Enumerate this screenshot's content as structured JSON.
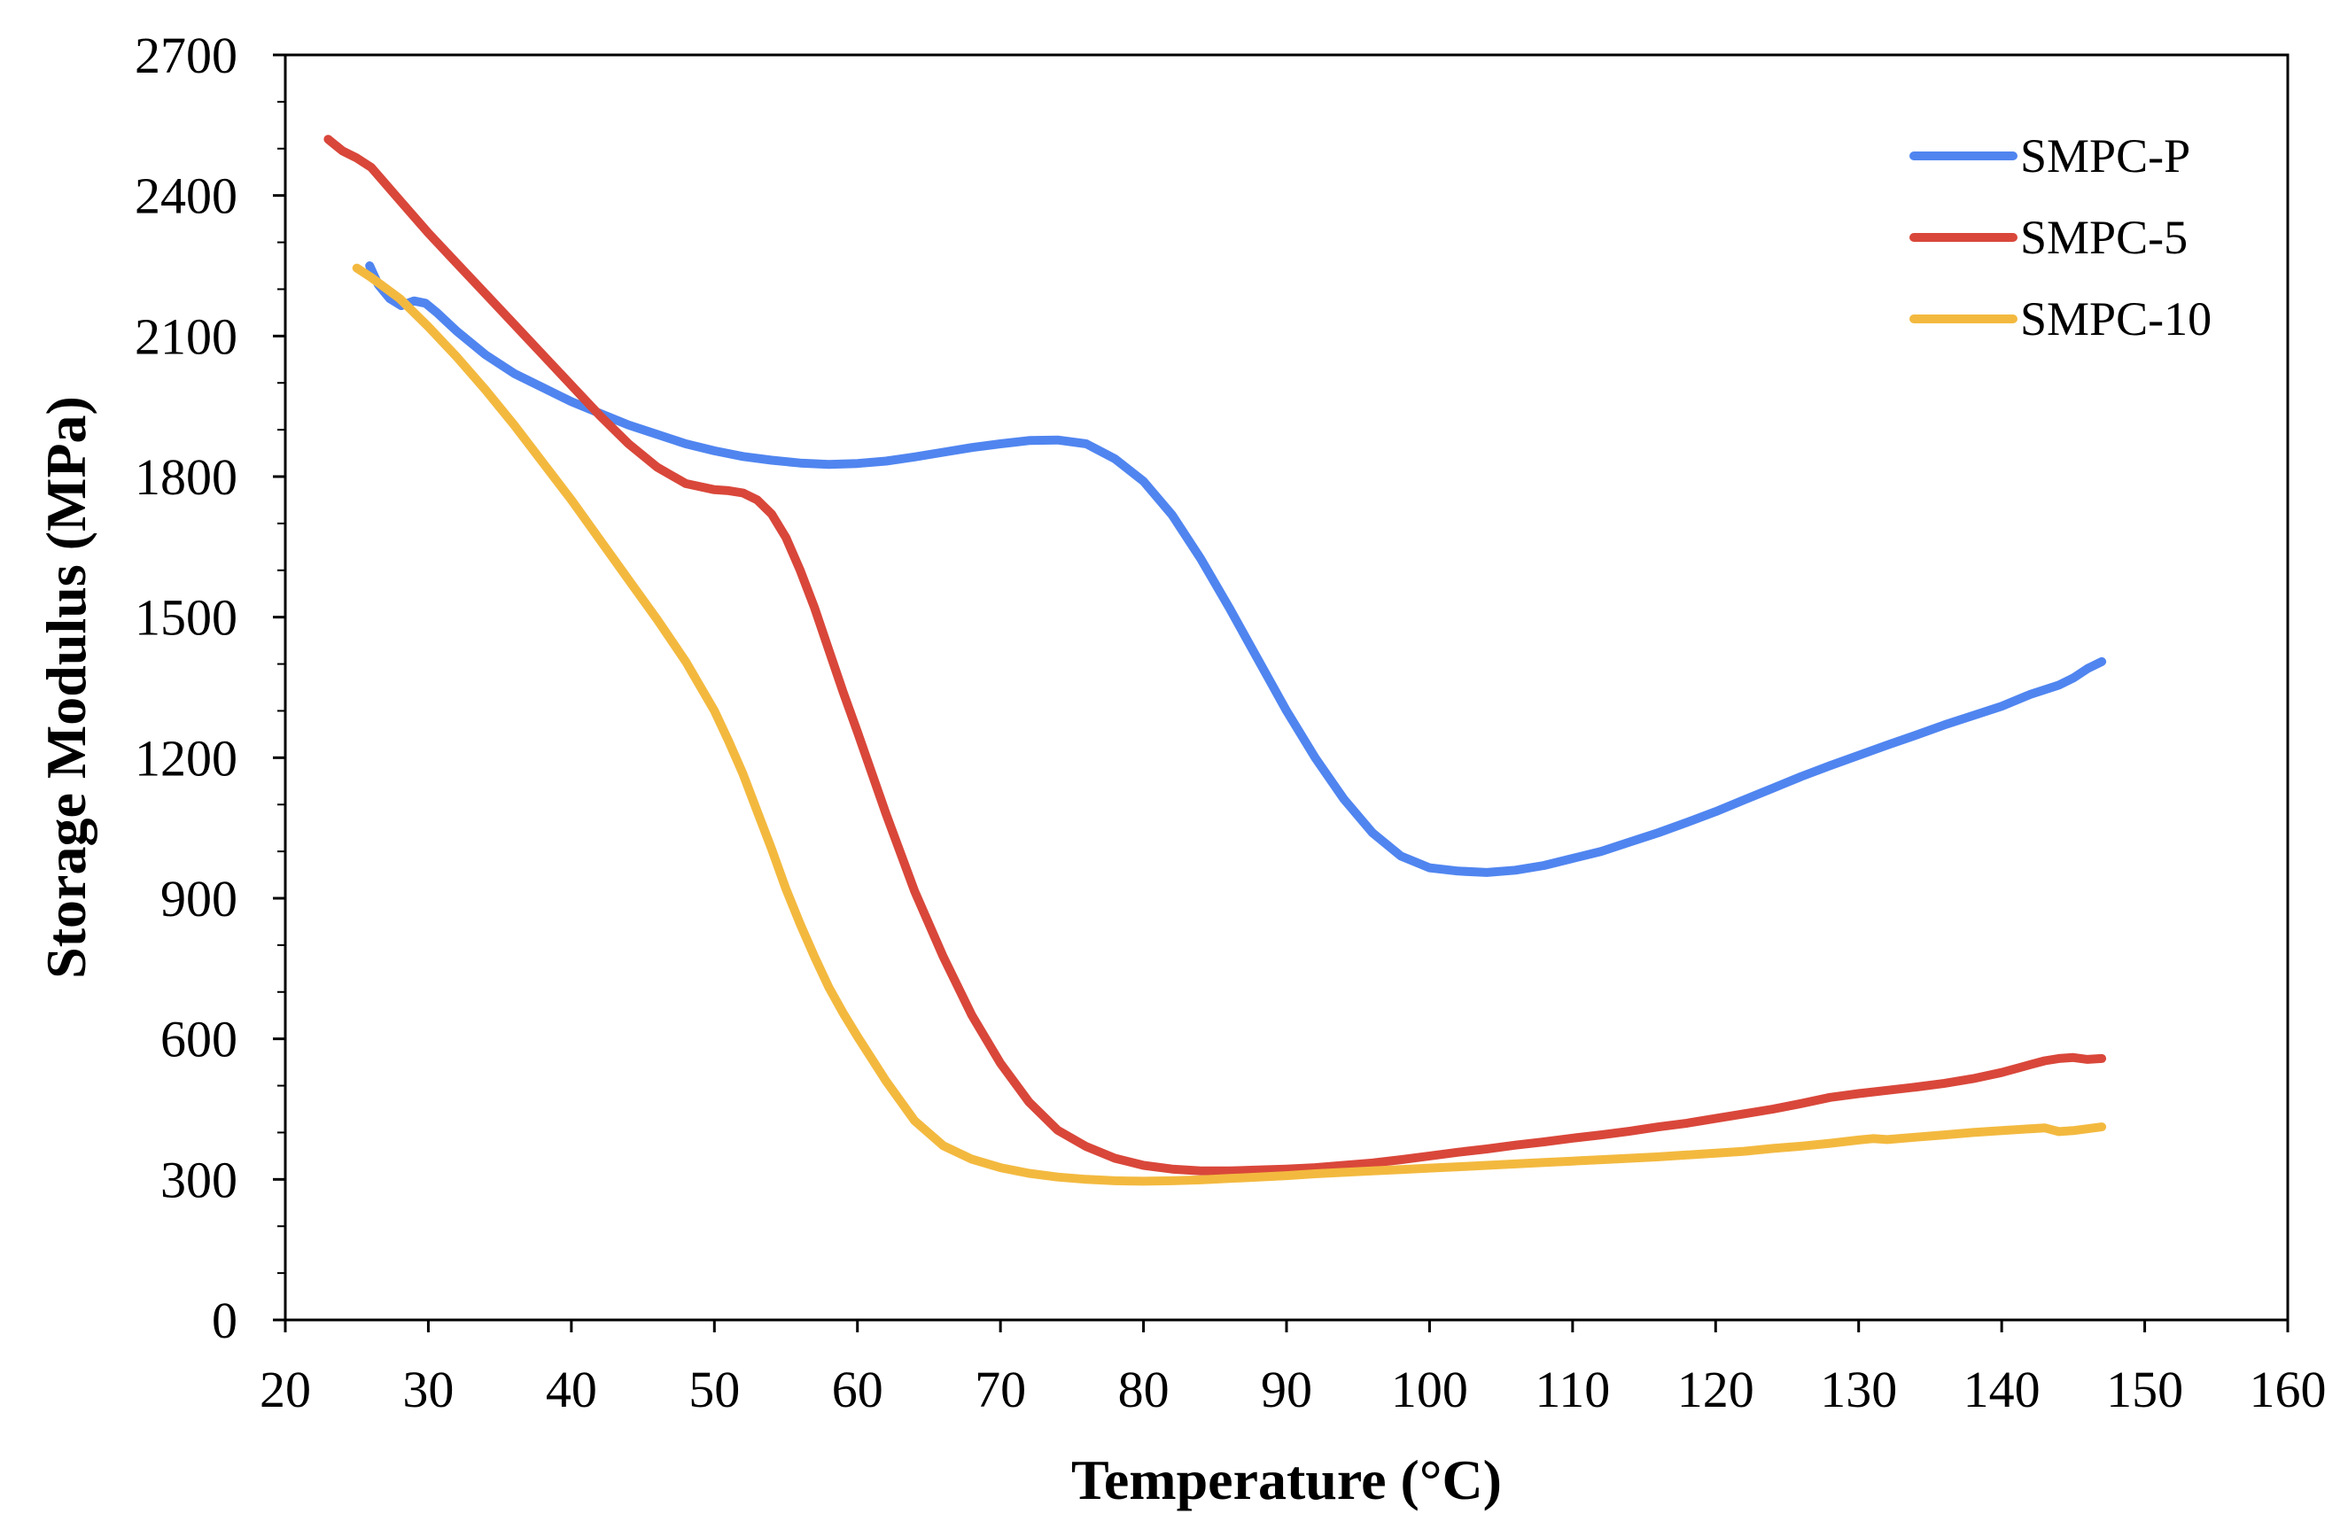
{
  "chart_data": {
    "type": "line",
    "title": "",
    "xlabel": "Temperature (°C)",
    "ylabel": "Storage Modulus (MPa)",
    "xlim": [
      20,
      160
    ],
    "ylim": [
      0,
      2700
    ],
    "xticks": [
      20,
      30,
      40,
      50,
      60,
      70,
      80,
      90,
      100,
      110,
      120,
      130,
      140,
      150,
      160
    ],
    "yticks": [
      0,
      300,
      600,
      900,
      1200,
      1500,
      1800,
      2100,
      2400,
      2700
    ],
    "grid": false,
    "legend_position": "top-right",
    "series": [
      {
        "name": "SMPC-P",
        "color": "#5085f0",
        "x": [
          25.9,
          26.5,
          27.3,
          28.1,
          29.0,
          29.8,
          30.6,
          32,
          34,
          36,
          38,
          40,
          42,
          44,
          46,
          48,
          50,
          52,
          54,
          56,
          58,
          60,
          62,
          64,
          66,
          68,
          70,
          72,
          74,
          76,
          78,
          80,
          82,
          84,
          86,
          88,
          90,
          92,
          94,
          96,
          98,
          100,
          102,
          104,
          106,
          108,
          110,
          112,
          114,
          116,
          118,
          120,
          122,
          124,
          126,
          128,
          130,
          132,
          134,
          136,
          138,
          140,
          142,
          144,
          145,
          146,
          147
        ],
        "y": [
          2250,
          2210,
          2180,
          2165,
          2175,
          2170,
          2150,
          2110,
          2060,
          2020,
          1990,
          1960,
          1935,
          1910,
          1890,
          1870,
          1855,
          1843,
          1835,
          1829,
          1826,
          1828,
          1833,
          1842,
          1852,
          1862,
          1870,
          1877,
          1878,
          1870,
          1838,
          1790,
          1718,
          1625,
          1520,
          1410,
          1300,
          1200,
          1112,
          1040,
          990,
          965,
          958,
          955,
          960,
          970,
          985,
          1000,
          1020,
          1040,
          1062,
          1085,
          1110,
          1135,
          1160,
          1183,
          1205,
          1227,
          1248,
          1270,
          1290,
          1310,
          1335,
          1355,
          1370,
          1390,
          1405
        ]
      },
      {
        "name": "SMPC-5",
        "color": "#d9473a",
        "x": [
          23,
          24,
          25,
          26,
          28,
          30,
          32,
          34,
          36,
          38,
          40,
          42,
          44,
          46,
          48,
          50,
          51,
          52,
          53,
          54,
          55,
          56,
          57,
          58,
          59,
          60,
          62,
          64,
          66,
          68,
          70,
          72,
          74,
          76,
          78,
          80,
          82,
          84,
          86,
          88,
          90,
          92,
          94,
          96,
          98,
          100,
          102,
          104,
          106,
          108,
          110,
          112,
          114,
          116,
          118,
          120,
          122,
          124,
          126,
          128,
          130,
          132,
          134,
          136,
          138,
          140,
          142,
          143,
          144,
          145,
          146,
          147
        ],
        "y": [
          2520,
          2495,
          2480,
          2460,
          2390,
          2320,
          2255,
          2190,
          2125,
          2060,
          1995,
          1930,
          1870,
          1820,
          1785,
          1772,
          1770,
          1765,
          1750,
          1720,
          1670,
          1600,
          1520,
          1430,
          1340,
          1255,
          1080,
          915,
          775,
          650,
          548,
          465,
          405,
          370,
          345,
          330,
          322,
          318,
          318,
          320,
          322,
          325,
          330,
          335,
          342,
          350,
          358,
          365,
          373,
          380,
          388,
          395,
          403,
          412,
          420,
          430,
          440,
          450,
          462,
          475,
          483,
          490,
          497,
          505,
          515,
          528,
          545,
          553,
          558,
          560,
          556,
          558
        ]
      },
      {
        "name": "SMPC-10",
        "color": "#f3b93f",
        "x": [
          25,
          26,
          28,
          30,
          32,
          34,
          36,
          38,
          40,
          42,
          44,
          46,
          48,
          50,
          51,
          52,
          53,
          54,
          55,
          56,
          57,
          58,
          59,
          60,
          62,
          64,
          66,
          68,
          70,
          72,
          74,
          76,
          78,
          80,
          82,
          84,
          86,
          88,
          90,
          92,
          94,
          96,
          98,
          100,
          102,
          104,
          106,
          108,
          110,
          112,
          114,
          116,
          118,
          120,
          122,
          124,
          126,
          128,
          130,
          131,
          132,
          134,
          136,
          138,
          140,
          142,
          143,
          144,
          145,
          146,
          147
        ],
        "y": [
          2245,
          2225,
          2180,
          2120,
          2055,
          1985,
          1910,
          1830,
          1750,
          1665,
          1580,
          1495,
          1405,
          1300,
          1235,
          1165,
          1085,
          1005,
          920,
          845,
          775,
          710,
          655,
          605,
          510,
          425,
          372,
          343,
          325,
          313,
          305,
          300,
          297,
          296,
          297,
          299,
          302,
          305,
          308,
          312,
          315,
          318,
          321,
          324,
          327,
          330,
          333,
          336,
          339,
          342,
          345,
          348,
          352,
          356,
          360,
          366,
          371,
          377,
          384,
          387,
          385,
          390,
          395,
          400,
          404,
          408,
          410,
          402,
          404,
          408,
          412
        ]
      }
    ]
  }
}
